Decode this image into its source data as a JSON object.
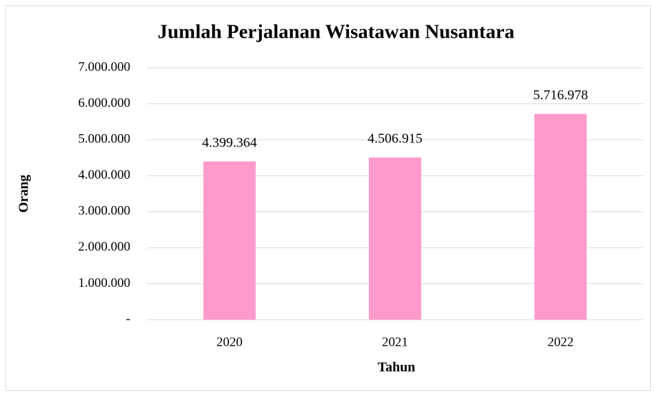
{
  "chart_data": {
    "type": "bar",
    "title": "Jumlah Perjalanan Wisatawan Nusantara",
    "x_label": "Tahun",
    "y_label": "Orang",
    "categories": [
      "2020",
      "2021",
      "2022"
    ],
    "values": [
      4399364,
      4506915,
      5716978
    ],
    "value_labels": [
      "4.399.364",
      "4.506.915",
      "5.716.978"
    ],
    "color": "#fc9bcb",
    "ylim": [
      0,
      7000000
    ],
    "yticks": [
      {
        "value": 0,
        "label": "-"
      },
      {
        "value": 1000000,
        "label": "1.000.000"
      },
      {
        "value": 2000000,
        "label": "2.000.000"
      },
      {
        "value": 3000000,
        "label": "3.000.000"
      },
      {
        "value": 4000000,
        "label": "4.000.000"
      },
      {
        "value": 5000000,
        "label": "5.000.000"
      },
      {
        "value": 6000000,
        "label": "6.000.000"
      },
      {
        "value": 7000000,
        "label": "7.000.000"
      }
    ],
    "grid": true
  }
}
